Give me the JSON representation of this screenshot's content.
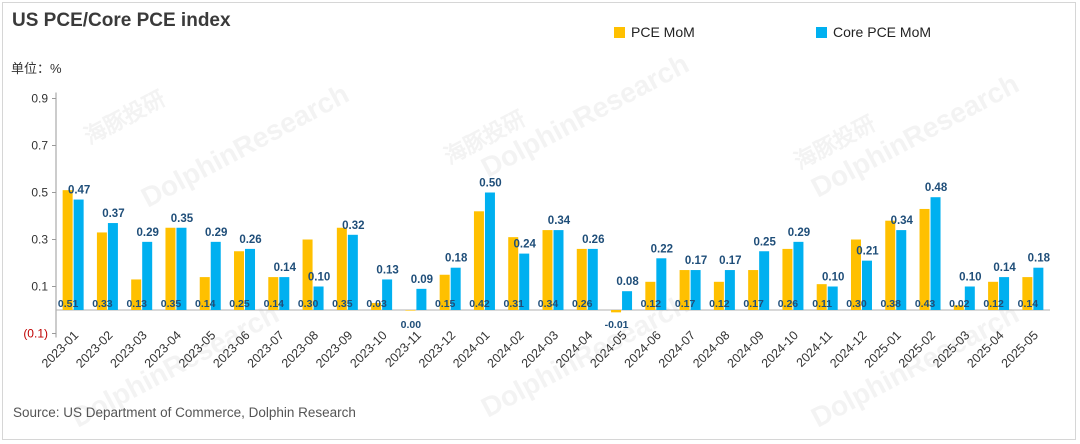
{
  "title": "US PCE/Core PCE index",
  "unit_label": "单位：%",
  "source": "Source: US Department of Commerce, Dolphin Research",
  "watermark": "DolphinResearch",
  "watermark_cn": "海豚投研",
  "colors": {
    "pce": "#FFC000",
    "core": "#00B0F0",
    "axis_negative": "#C00000",
    "value_label": "#1F4E79"
  },
  "chart_data": {
    "type": "bar",
    "categories": [
      "2023-01",
      "2023-02",
      "2023-03",
      "2023-04",
      "2023-05",
      "2023-06",
      "2023-07",
      "2023-08",
      "2023-09",
      "2023-10",
      "2023-11",
      "2023-12",
      "2024-01",
      "2024-02",
      "2024-03",
      "2024-04",
      "2024-05",
      "2024-06",
      "2024-07",
      "2024-08",
      "2024-09",
      "2024-10",
      "2024-11",
      "2024-12",
      "2025-01",
      "2025-02",
      "2025-03",
      "2025-04",
      "2025-05"
    ],
    "series": [
      {
        "name": "PCE MoM",
        "values": [
          0.51,
          0.33,
          0.13,
          0.35,
          0.14,
          0.25,
          0.14,
          0.3,
          0.35,
          0.03,
          0.0,
          0.15,
          0.42,
          0.31,
          0.34,
          0.26,
          -0.01,
          0.12,
          0.17,
          0.12,
          0.17,
          0.26,
          0.11,
          0.3,
          0.38,
          0.43,
          0.02,
          0.12,
          0.14
        ]
      },
      {
        "name": "Core PCE MoM",
        "values": [
          0.47,
          0.37,
          0.29,
          0.35,
          0.29,
          0.26,
          0.14,
          0.1,
          0.32,
          0.13,
          0.09,
          0.18,
          0.5,
          0.24,
          0.34,
          0.26,
          0.08,
          0.22,
          0.17,
          0.17,
          0.25,
          0.29,
          0.1,
          0.21,
          0.34,
          0.48,
          0.1,
          0.14,
          0.18
        ]
      }
    ],
    "y_ticks": [
      "(0.1)",
      "0.1",
      "0.3",
      "0.5",
      "0.7",
      "0.9"
    ],
    "y_tick_values": [
      -0.1,
      0.1,
      0.3,
      0.5,
      0.7,
      0.9
    ],
    "ylim": [
      -0.1,
      0.9
    ],
    "legend": "top-right",
    "grid": false
  }
}
